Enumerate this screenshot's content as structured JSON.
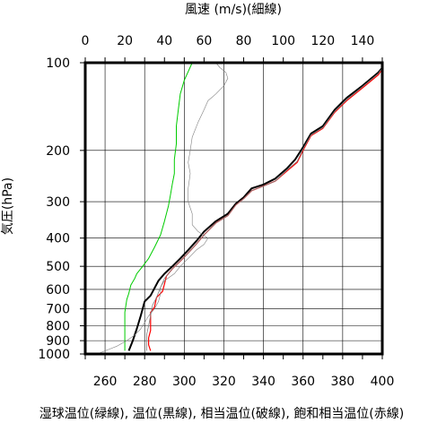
{
  "chart_data": {
    "type": "line",
    "title": "",
    "top_axis": {
      "label": "風速 (m/s)(細線)",
      "range": [
        0,
        150
      ],
      "ticks": [
        0,
        20,
        40,
        60,
        80,
        100,
        120,
        140
      ]
    },
    "bottom_axis": {
      "label": "湿球温位(緑線), 温位(黒線), 相当温位(破線), 飽和相当温位(赤線)",
      "range": [
        250,
        400
      ],
      "ticks": [
        260,
        280,
        300,
        320,
        340,
        360,
        380,
        400
      ]
    },
    "y_axis": {
      "label": "気圧(hPa)",
      "scale": "log",
      "reversed": true,
      "range": [
        100,
        1000
      ],
      "ticks": [
        100,
        200,
        300,
        400,
        500,
        600,
        700,
        800,
        900,
        1000
      ]
    },
    "grid": true,
    "series": [
      {
        "axis": "bottom",
        "color": "#000000",
        "points": [
          [
            272,
            975
          ],
          [
            274,
            900
          ],
          [
            276,
            820
          ],
          [
            278,
            740
          ],
          [
            280,
            660
          ],
          [
            283,
            630
          ],
          [
            287,
            560
          ],
          [
            290,
            530
          ],
          [
            294,
            500
          ],
          [
            298,
            470
          ],
          [
            302,
            440
          ],
          [
            306,
            410
          ],
          [
            310,
            380
          ],
          [
            316,
            350
          ],
          [
            322,
            330
          ],
          [
            326,
            305
          ],
          [
            330,
            290
          ],
          [
            334,
            270
          ],
          [
            340,
            262
          ],
          [
            346,
            250
          ],
          [
            352,
            230
          ],
          [
            356,
            215
          ],
          [
            360,
            195
          ],
          [
            364,
            175
          ],
          [
            370,
            165
          ],
          [
            376,
            145
          ],
          [
            382,
            132
          ],
          [
            390,
            120
          ],
          [
            398,
            108
          ],
          [
            400,
            104
          ]
        ]
      },
      {
        "axis": "bottom",
        "color": "#ff0000",
        "points": [
          [
            283,
            975
          ],
          [
            282,
            930
          ],
          [
            282,
            880
          ],
          [
            283,
            830
          ],
          [
            283,
            780
          ],
          [
            283,
            720
          ],
          [
            285,
            690
          ],
          [
            286,
            640
          ],
          [
            289,
            610
          ],
          [
            290,
            575
          ],
          [
            291,
            540
          ],
          [
            294,
            510
          ],
          [
            298,
            480
          ],
          [
            302,
            450
          ],
          [
            306,
            420
          ],
          [
            310,
            390
          ],
          [
            316,
            355
          ],
          [
            322,
            335
          ],
          [
            326,
            308
          ],
          [
            330,
            293
          ],
          [
            334,
            275
          ],
          [
            340,
            265
          ],
          [
            346,
            255
          ],
          [
            352,
            235
          ],
          [
            357,
            220
          ],
          [
            360,
            200
          ],
          [
            364,
            178
          ],
          [
            370,
            168
          ],
          [
            376,
            148
          ],
          [
            382,
            135
          ],
          [
            390,
            122
          ],
          [
            398,
            110
          ],
          [
            400,
            105
          ]
        ]
      },
      {
        "axis": "bottom",
        "color": "#808080",
        "points": [
          [
            281,
            975
          ],
          [
            281,
            920
          ],
          [
            281,
            860
          ],
          [
            282,
            800
          ],
          [
            283,
            740
          ],
          [
            284,
            680
          ],
          [
            286,
            640
          ],
          [
            288,
            590
          ],
          [
            290,
            550
          ],
          [
            294,
            510
          ],
          [
            298,
            480
          ],
          [
            302,
            450
          ],
          [
            306,
            420
          ],
          [
            310,
            390
          ],
          [
            316,
            355
          ],
          [
            322,
            335
          ],
          [
            326,
            308
          ],
          [
            330,
            293
          ],
          [
            334,
            275
          ],
          [
            340,
            265
          ],
          [
            346,
            255
          ],
          [
            352,
            233
          ],
          [
            357,
            218
          ],
          [
            360,
            198
          ],
          [
            364,
            177
          ],
          [
            370,
            167
          ],
          [
            376,
            147
          ],
          [
            382,
            134
          ],
          [
            390,
            121
          ],
          [
            398,
            109
          ],
          [
            400,
            104
          ]
        ]
      },
      {
        "axis": "bottom",
        "color": "#00cc00",
        "points": [
          [
            270,
            975
          ],
          [
            270,
            880
          ],
          [
            270,
            800
          ],
          [
            270,
            720
          ],
          [
            271,
            650
          ],
          [
            272,
            620
          ],
          [
            273,
            580
          ],
          [
            275,
            550
          ],
          [
            276,
            530
          ],
          [
            279,
            500
          ],
          [
            282,
            470
          ],
          [
            285,
            430
          ],
          [
            288,
            390
          ],
          [
            290,
            350
          ],
          [
            292,
            310
          ],
          [
            293,
            285
          ],
          [
            294,
            260
          ],
          [
            295,
            240
          ],
          [
            295,
            215
          ],
          [
            296,
            190
          ],
          [
            296,
            165
          ],
          [
            297,
            145
          ],
          [
            298,
            128
          ],
          [
            300,
            115
          ],
          [
            304,
            100
          ]
        ]
      },
      {
        "axis": "top",
        "color": "#808080",
        "points": [
          [
            6,
            1000
          ],
          [
            16,
            940
          ],
          [
            21,
            900
          ],
          [
            25,
            860
          ],
          [
            28,
            820
          ],
          [
            30,
            780
          ],
          [
            32,
            740
          ],
          [
            35,
            700
          ],
          [
            37,
            660
          ],
          [
            38,
            620
          ],
          [
            38,
            590
          ],
          [
            40,
            560
          ],
          [
            45,
            530
          ],
          [
            48,
            500
          ],
          [
            52,
            470
          ],
          [
            56,
            440
          ],
          [
            60,
            420
          ],
          [
            62,
            400
          ],
          [
            57,
            380
          ],
          [
            54,
            360
          ],
          [
            54,
            330
          ],
          [
            52,
            300
          ],
          [
            52,
            270
          ],
          [
            53,
            240
          ],
          [
            52,
            220
          ],
          [
            53,
            200
          ],
          [
            54,
            180
          ],
          [
            57,
            160
          ],
          [
            60,
            145
          ],
          [
            62,
            135
          ],
          [
            66,
            128
          ],
          [
            70,
            120
          ],
          [
            72,
            113
          ],
          [
            71,
            108
          ],
          [
            68,
            104
          ],
          [
            66,
            100
          ]
        ]
      }
    ]
  }
}
